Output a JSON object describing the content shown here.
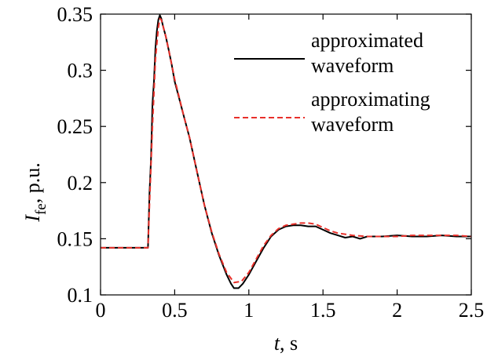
{
  "chart_data": {
    "type": "line",
    "xlabel": {
      "italic": "t",
      "rest": ", s"
    },
    "ylabel": {
      "italic": "I",
      "sub": "fe",
      "rest": ", p.u."
    },
    "xlim": [
      0,
      2.5
    ],
    "ylim": [
      0.1,
      0.35
    ],
    "x_ticks": [
      0,
      0.5,
      1,
      1.5,
      2,
      2.5
    ],
    "x_tick_labels": [
      "0",
      "0.5",
      "1",
      "1.5",
      "2",
      "2.5"
    ],
    "y_ticks": [
      0.1,
      0.15,
      0.2,
      0.25,
      0.3,
      0.35
    ],
    "y_tick_labels": [
      "0.1",
      "0.15",
      "0.2",
      "0.25",
      "0.3",
      "0.35"
    ],
    "grid": false,
    "legend_position": "top-right",
    "series": [
      {
        "name_lines": [
          "approximated",
          "waveform"
        ],
        "color": "#000000",
        "dash": "solid",
        "x": [
          0,
          0.32,
          0.33,
          0.34,
          0.35,
          0.36,
          0.37,
          0.38,
          0.39,
          0.4,
          0.41,
          0.42,
          0.44,
          0.46,
          0.48,
          0.5,
          0.53,
          0.56,
          0.6,
          0.65,
          0.7,
          0.75,
          0.8,
          0.85,
          0.88,
          0.9,
          0.93,
          0.96,
          1.0,
          1.05,
          1.1,
          1.15,
          1.2,
          1.25,
          1.3,
          1.35,
          1.4,
          1.45,
          1.5,
          1.55,
          1.6,
          1.65,
          1.7,
          1.75,
          1.8,
          1.9,
          2.0,
          2.1,
          2.2,
          2.3,
          2.4,
          2.5
        ],
        "y": [
          0.142,
          0.142,
          0.19,
          0.22,
          0.27,
          0.29,
          0.32,
          0.335,
          0.345,
          0.349,
          0.346,
          0.34,
          0.33,
          0.318,
          0.305,
          0.29,
          0.275,
          0.26,
          0.24,
          0.21,
          0.18,
          0.155,
          0.135,
          0.118,
          0.11,
          0.106,
          0.106,
          0.11,
          0.118,
          0.13,
          0.142,
          0.152,
          0.158,
          0.161,
          0.162,
          0.162,
          0.161,
          0.161,
          0.158,
          0.155,
          0.153,
          0.151,
          0.152,
          0.15,
          0.152,
          0.152,
          0.153,
          0.152,
          0.152,
          0.153,
          0.152,
          0.152
        ]
      },
      {
        "name_lines": [
          "approximating",
          "waveform"
        ],
        "color": "#e8302a",
        "dash": "dashed",
        "x": [
          0,
          0.32,
          0.33,
          0.35,
          0.37,
          0.39,
          0.4,
          0.41,
          0.42,
          0.44,
          0.46,
          0.48,
          0.5,
          0.53,
          0.56,
          0.6,
          0.65,
          0.7,
          0.75,
          0.8,
          0.85,
          0.9,
          0.95,
          1.0,
          1.05,
          1.1,
          1.15,
          1.2,
          1.25,
          1.3,
          1.35,
          1.4,
          1.45,
          1.5,
          1.55,
          1.6,
          1.7,
          1.8,
          1.9,
          2.0,
          2.1,
          2.2,
          2.3,
          2.4,
          2.5
        ],
        "y": [
          0.142,
          0.142,
          0.18,
          0.25,
          0.31,
          0.338,
          0.346,
          0.345,
          0.34,
          0.33,
          0.318,
          0.305,
          0.292,
          0.276,
          0.26,
          0.24,
          0.21,
          0.18,
          0.156,
          0.136,
          0.12,
          0.111,
          0.112,
          0.12,
          0.132,
          0.144,
          0.153,
          0.159,
          0.162,
          0.163,
          0.164,
          0.164,
          0.163,
          0.16,
          0.157,
          0.155,
          0.153,
          0.152,
          0.152,
          0.152,
          0.153,
          0.153,
          0.153,
          0.153,
          0.152
        ]
      }
    ]
  }
}
